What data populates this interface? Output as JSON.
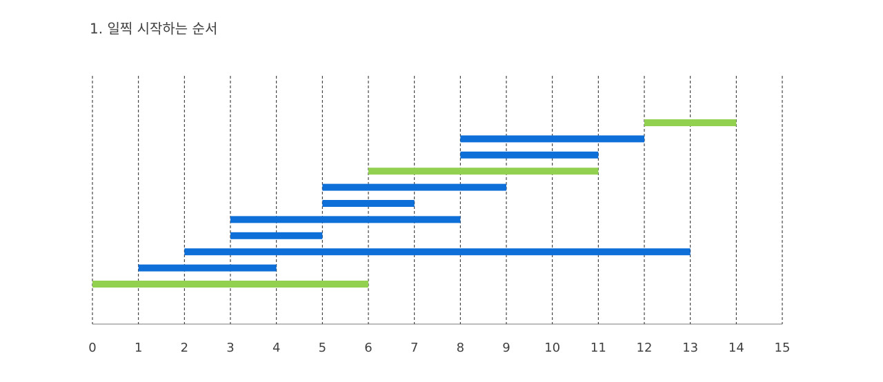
{
  "chart_data": {
    "type": "gantt",
    "title": "1. 일찍 시작하는 순서",
    "xlim": [
      0,
      15
    ],
    "xticks": [
      0,
      1,
      2,
      3,
      4,
      5,
      6,
      7,
      8,
      9,
      10,
      11,
      12,
      13,
      14,
      15
    ],
    "grid": true,
    "intervals": [
      {
        "start": 0,
        "end": 6,
        "color": "#92d050"
      },
      {
        "start": 1,
        "end": 4,
        "color": "#0f6fd8"
      },
      {
        "start": 2,
        "end": 13,
        "color": "#0f6fd8"
      },
      {
        "start": 3,
        "end": 5,
        "color": "#0f6fd8"
      },
      {
        "start": 3,
        "end": 8,
        "color": "#0f6fd8"
      },
      {
        "start": 5,
        "end": 7,
        "color": "#0f6fd8"
      },
      {
        "start": 5,
        "end": 9,
        "color": "#0f6fd8"
      },
      {
        "start": 6,
        "end": 11,
        "color": "#92d050"
      },
      {
        "start": 8,
        "end": 11,
        "color": "#0f6fd8"
      },
      {
        "start": 8,
        "end": 12,
        "color": "#0f6fd8"
      },
      {
        "start": 12,
        "end": 14,
        "color": "#92d050"
      }
    ]
  }
}
